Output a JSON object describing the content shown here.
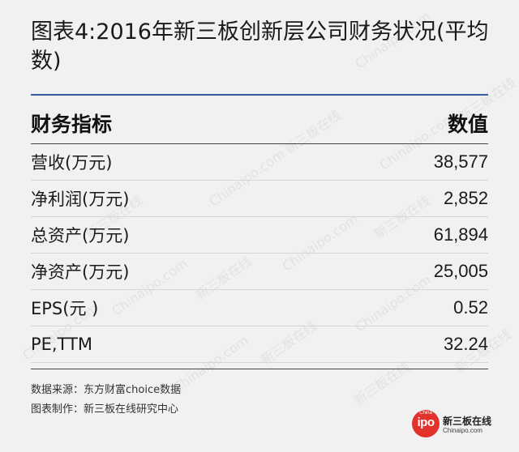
{
  "title": "图表4:2016年新三板创新层公司财务状况(平均数)",
  "table": {
    "header_indicator": "财务指标",
    "header_value": "数值",
    "rows": [
      {
        "label": "营收(万元)",
        "value": "38,577"
      },
      {
        "label": "净利润(万元)",
        "value": "2,852"
      },
      {
        "label": "总资产(万元)",
        "value": "61,894"
      },
      {
        "label": "净资产(万元)",
        "value": "25,005"
      },
      {
        "label": "EPS(元 )",
        "value": "0.52"
      },
      {
        "label": "PE,TTM",
        "value": "32.24"
      }
    ]
  },
  "footer": {
    "source": "数据来源：东方财富choice数据",
    "maker": "图表制作：新三板在线研究中心"
  },
  "logo": {
    "badge_top": "China",
    "badge_main": "ipo",
    "name": "新三板在线",
    "site": "Chinaipo.com"
  },
  "watermark": {
    "cn": "新三板在线",
    "en": "Chinaipo.com"
  },
  "colors": {
    "background": "#f1f1f1",
    "title_rule": "#3a5aa0",
    "logo_red": "#e2322b"
  }
}
